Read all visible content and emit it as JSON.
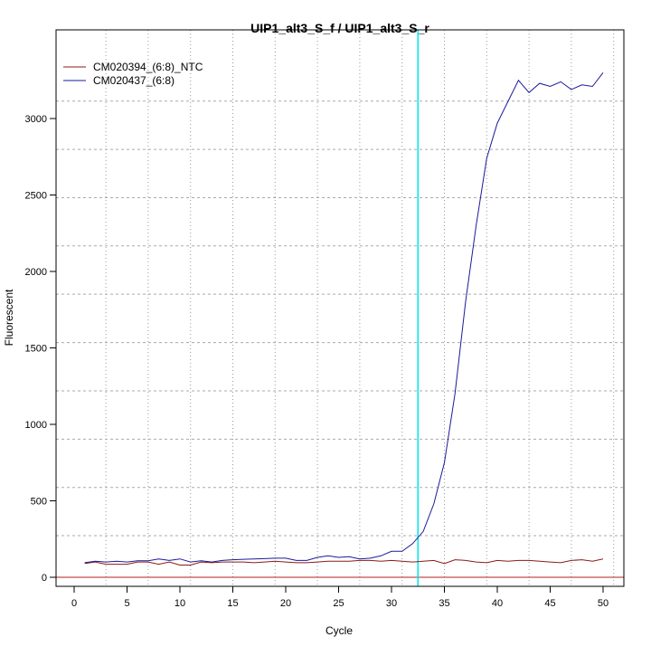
{
  "chart_data": {
    "type": "line",
    "title": "UIP1_alt3_S_f / UIP1_alt3_S_r",
    "xlabel": "Cycle",
    "ylabel": "Fluorescent",
    "xlim": [
      -2,
      52
    ],
    "ylim": [
      -60,
      3580
    ],
    "xticks": [
      0,
      5,
      10,
      15,
      20,
      25,
      30,
      35,
      40,
      45,
      50
    ],
    "yticks": [
      0,
      500,
      1000,
      1500,
      2000,
      2500,
      3000
    ],
    "grid_x": [
      3,
      7,
      11,
      15,
      19,
      23,
      27,
      31,
      35,
      39,
      43,
      47,
      51
    ],
    "grid_y": [
      272,
      587,
      903,
      1219,
      1535,
      1851,
      2167,
      2482,
      2798,
      3114
    ],
    "threshold_cycle": 32.5,
    "baseline_value": 0,
    "threshold_color": "#00e5ee",
    "baseline_color": "#b22222",
    "legend_position": "top-left",
    "x": [
      1,
      2,
      3,
      4,
      5,
      6,
      7,
      8,
      9,
      10,
      11,
      12,
      13,
      14,
      15,
      16,
      17,
      18,
      19,
      20,
      21,
      22,
      23,
      24,
      25,
      26,
      27,
      28,
      29,
      30,
      31,
      32,
      33,
      34,
      35,
      36,
      37,
      38,
      39,
      40,
      41,
      42,
      43,
      44,
      45,
      46,
      47,
      48,
      49,
      50
    ],
    "series": [
      {
        "name": "CM020394_(6:8)_NTC",
        "color": "#8b1a1a",
        "values": [
          90,
          100,
          85,
          85,
          85,
          100,
          100,
          85,
          100,
          80,
          80,
          100,
          95,
          100,
          100,
          100,
          95,
          100,
          105,
          100,
          95,
          95,
          100,
          105,
          105,
          105,
          110,
          110,
          105,
          110,
          105,
          100,
          105,
          110,
          90,
          115,
          110,
          100,
          95,
          110,
          105,
          110,
          110,
          105,
          100,
          95,
          110,
          115,
          105,
          120
        ]
      },
      {
        "name": "CM020437_(6:8)",
        "color": "#1a1a9c",
        "values": [
          95,
          105,
          100,
          105,
          100,
          108,
          108,
          120,
          110,
          120,
          100,
          108,
          100,
          110,
          115,
          118,
          120,
          122,
          125,
          125,
          110,
          110,
          130,
          140,
          130,
          135,
          120,
          125,
          140,
          170,
          170,
          220,
          300,
          480,
          750,
          1200,
          1800,
          2300,
          2740,
          2970,
          3110,
          3250,
          3170,
          3230,
          3210,
          3240,
          3190,
          3220,
          3210,
          3300
        ]
      }
    ]
  }
}
